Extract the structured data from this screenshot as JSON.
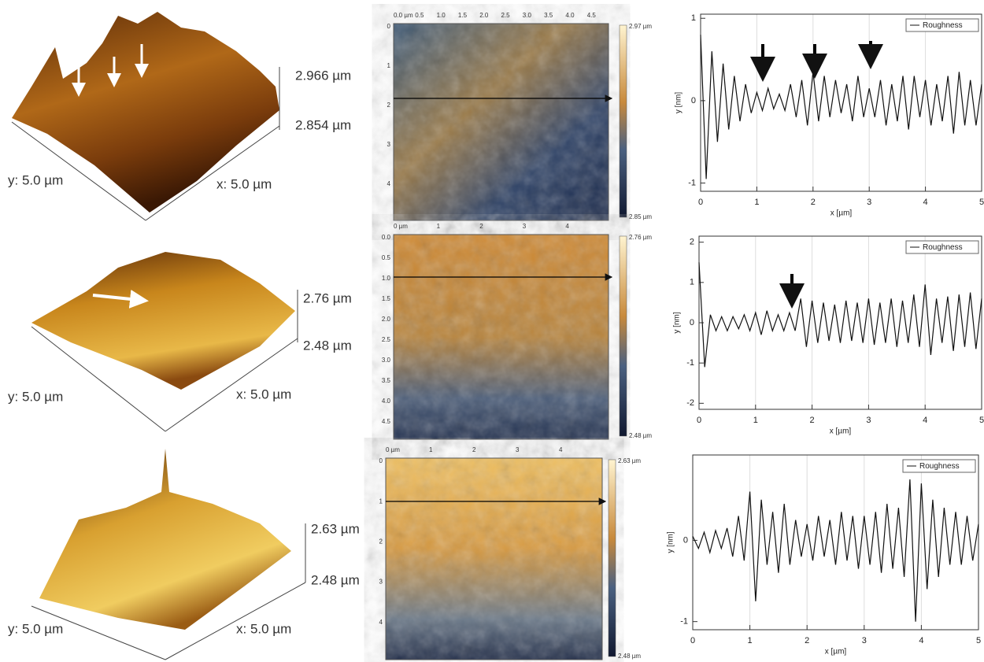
{
  "afm_panels": [
    {
      "surface": {
        "z_top": "2.966 µm",
        "z_bottom": "2.854 µm",
        "y_axis": "y: 5.0 µm",
        "x_axis": "x: 5.0 µm"
      },
      "map": {
        "x_ticks": [
          "0.0 µm",
          "0.5",
          "1.0",
          "1.5",
          "2.0",
          "2.5",
          "3.0",
          "3.5",
          "4.0",
          "4.5"
        ],
        "y_ticks": [
          "0",
          "1",
          "2",
          "3",
          "4"
        ],
        "scale_max": "2.97 µm",
        "scale_min": "2.85 µm"
      }
    },
    {
      "surface": {
        "z_top": "2.76 µm",
        "z_bottom": "2.48 µm",
        "y_axis": "y: 5.0 µm",
        "x_axis": "x: 5.0 µm"
      },
      "map": {
        "x_ticks": [
          "0 µm",
          "1",
          "2",
          "3",
          "4"
        ],
        "y_ticks": [
          "0.0",
          "0.5",
          "1.0",
          "1.5",
          "2.0",
          "2.5",
          "3.0",
          "3.5",
          "4.0",
          "4.5"
        ],
        "scale_max": "2.76 µm",
        "scale_min": "2.48 µm"
      }
    },
    {
      "surface": {
        "z_top": "2.63 µm",
        "z_bottom": "2.48 µm",
        "y_axis": "y: 5.0 µm",
        "x_axis": "x: 5.0 µm"
      },
      "map": {
        "x_ticks": [
          "0 µm",
          "1",
          "2",
          "3",
          "4"
        ],
        "y_ticks": [
          "0",
          "1",
          "2",
          "3",
          "4"
        ],
        "scale_max": "2.63 µm",
        "scale_min": "2.48 µm"
      }
    }
  ],
  "chart_data": [
    {
      "type": "line",
      "x_label": "x [µm]",
      "y_label": "y [nm]",
      "xlim": [
        0,
        5
      ],
      "xticks": [
        0,
        1,
        2,
        3,
        4,
        5
      ],
      "ylim": [
        -1.1,
        1.05
      ],
      "yticks": [
        -1,
        0,
        1
      ],
      "grid": true,
      "legend": "top-right",
      "x": [
        0,
        0.1,
        0.2,
        0.3,
        0.4,
        0.5,
        0.6,
        0.7,
        0.8,
        0.9,
        1,
        1.1,
        1.2,
        1.3,
        1.4,
        1.5,
        1.6,
        1.7,
        1.8,
        1.9,
        2,
        2.1,
        2.2,
        2.3,
        2.4,
        2.5,
        2.6,
        2.7,
        2.8,
        2.9,
        3,
        3.1,
        3.2,
        3.3,
        3.4,
        3.5,
        3.6,
        3.7,
        3.8,
        3.9,
        4,
        4.1,
        4.2,
        4.3,
        4.4,
        4.5,
        4.6,
        4.7,
        4.8,
        4.9,
        5
      ],
      "series": [
        {
          "name": "Roughness",
          "color": "#111111",
          "values": [
            0.8,
            -0.95,
            0.6,
            -0.5,
            0.45,
            -0.35,
            0.3,
            -0.25,
            0.2,
            -0.15,
            0.1,
            -0.12,
            0.15,
            -0.1,
            0.08,
            -0.12,
            0.2,
            -0.2,
            0.25,
            -0.3,
            0.35,
            -0.25,
            0.3,
            -0.2,
            0.25,
            -0.15,
            0.2,
            -0.25,
            0.3,
            -0.2,
            0.15,
            -0.2,
            0.25,
            -0.3,
            0.2,
            -0.25,
            0.3,
            -0.35,
            0.3,
            -0.2,
            0.25,
            -0.3,
            0.2,
            -0.25,
            0.3,
            -0.4,
            0.35,
            -0.3,
            0.25,
            -0.3,
            0.2
          ]
        }
      ]
    },
    {
      "type": "line",
      "x_label": "x [µm]",
      "y_label": "y [nm]",
      "xlim": [
        0,
        5
      ],
      "xticks": [
        0,
        1,
        2,
        3,
        4,
        5
      ],
      "ylim": [
        -2.15,
        2.15
      ],
      "yticks": [
        -2,
        -1,
        0,
        1,
        2
      ],
      "grid": true,
      "legend": "top-right",
      "x": [
        0,
        0.1,
        0.2,
        0.3,
        0.4,
        0.5,
        0.6,
        0.7,
        0.8,
        0.9,
        1,
        1.1,
        1.2,
        1.3,
        1.4,
        1.5,
        1.6,
        1.7,
        1.8,
        1.9,
        2,
        2.1,
        2.2,
        2.3,
        2.4,
        2.5,
        2.6,
        2.7,
        2.8,
        2.9,
        3,
        3.1,
        3.2,
        3.3,
        3.4,
        3.5,
        3.6,
        3.7,
        3.8,
        3.9,
        4,
        4.1,
        4.2,
        4.3,
        4.4,
        4.5,
        4.6,
        4.7,
        4.8,
        4.9,
        5
      ],
      "series": [
        {
          "name": "Roughness",
          "color": "#111111",
          "values": [
            1.5,
            -1.1,
            0.2,
            -0.2,
            0.15,
            -0.2,
            0.15,
            -0.15,
            0.2,
            -0.2,
            0.25,
            -0.3,
            0.3,
            -0.2,
            0.2,
            -0.2,
            0.25,
            -0.2,
            0.6,
            -0.6,
            0.55,
            -0.5,
            0.5,
            -0.45,
            0.45,
            -0.5,
            0.55,
            -0.45,
            0.5,
            -0.5,
            0.6,
            -0.55,
            0.5,
            -0.5,
            0.6,
            -0.6,
            0.55,
            -0.5,
            0.7,
            -0.6,
            0.95,
            -0.8,
            0.6,
            -0.5,
            0.65,
            -0.7,
            0.7,
            -0.6,
            0.75,
            -0.65,
            0.6
          ]
        }
      ]
    },
    {
      "type": "line",
      "x_label": "x [µm]",
      "y_label": "y [nm]",
      "xlim": [
        0,
        5
      ],
      "xticks": [
        0,
        1,
        2,
        3,
        4,
        5
      ],
      "ylim": [
        -1.1,
        1.05
      ],
      "yticks": [
        -1,
        0
      ],
      "grid": true,
      "legend": "top-right",
      "x": [
        0,
        0.1,
        0.2,
        0.3,
        0.4,
        0.5,
        0.6,
        0.7,
        0.8,
        0.9,
        1,
        1.1,
        1.2,
        1.3,
        1.4,
        1.5,
        1.6,
        1.7,
        1.8,
        1.9,
        2,
        2.1,
        2.2,
        2.3,
        2.4,
        2.5,
        2.6,
        2.7,
        2.8,
        2.9,
        3,
        3.1,
        3.2,
        3.3,
        3.4,
        3.5,
        3.6,
        3.7,
        3.8,
        3.9,
        4,
        4.1,
        4.2,
        4.3,
        4.4,
        4.5,
        4.6,
        4.7,
        4.8,
        4.9,
        5
      ],
      "series": [
        {
          "name": "Roughness",
          "color": "#111111",
          "values": [
            0.05,
            -0.1,
            0.1,
            -0.15,
            0.12,
            -0.1,
            0.15,
            -0.2,
            0.3,
            -0.25,
            0.6,
            -0.75,
            0.5,
            -0.3,
            0.35,
            -0.4,
            0.45,
            -0.3,
            0.25,
            -0.2,
            0.2,
            -0.25,
            0.3,
            -0.2,
            0.25,
            -0.3,
            0.35,
            -0.25,
            0.3,
            -0.35,
            0.3,
            -0.3,
            0.35,
            -0.4,
            0.45,
            -0.35,
            0.4,
            -0.45,
            0.75,
            -1.0,
            0.7,
            -0.6,
            0.5,
            -0.45,
            0.4,
            -0.3,
            0.35,
            -0.3,
            0.3,
            -0.25,
            0.2
          ]
        }
      ]
    }
  ]
}
